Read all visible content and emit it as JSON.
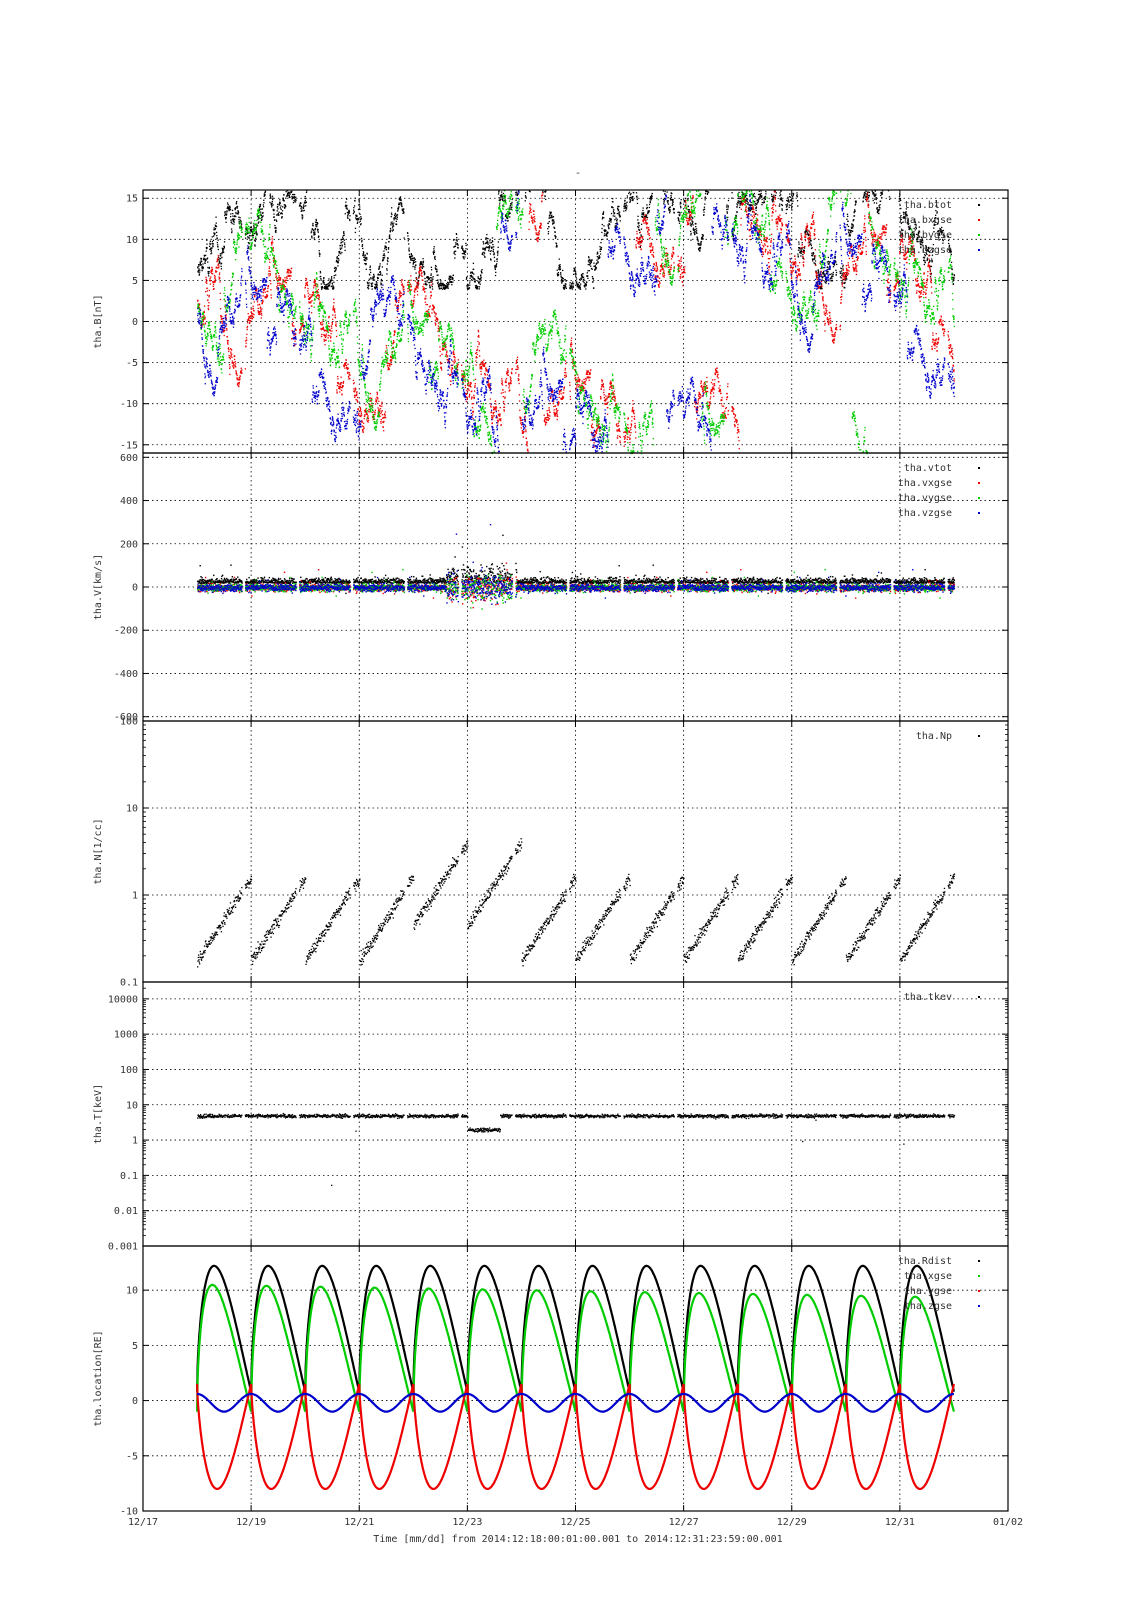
{
  "figure": {
    "title": "-",
    "x_axis_title": "Time [mm/dd]  from 2014:12:18:00:01:00.001  to  2014:12:31:23:59:00.001"
  },
  "chart_data": [
    {
      "type": "scatter",
      "panel": 1,
      "ylabel": "tha.B[nT]",
      "ylim": [
        -16,
        16
      ],
      "y_scale": "linear",
      "yticks": [
        -15,
        -10,
        -5,
        0,
        5,
        10,
        15
      ],
      "ytick_labels": [
        "-15",
        "-10",
        "-5",
        "0",
        "5",
        "10",
        "15"
      ],
      "xlim": [
        "12/17",
        "01/02"
      ],
      "grid": true,
      "legend_position": "top-right",
      "series": [
        {
          "name": "tha.btot",
          "color": "#000000"
        },
        {
          "name": "tha.bxgse",
          "color": "#ee0000"
        },
        {
          "name": "tha.bygse",
          "color": "#00cc00"
        },
        {
          "name": "tha.bzgse",
          "color": "#0000cc"
        }
      ],
      "data_note_x_range": [
        "12/18 00:01",
        "12/31 23:59"
      ]
    },
    {
      "type": "scatter",
      "panel": 2,
      "ylabel": "tha.V[km/s]",
      "ylim": [
        -620,
        620
      ],
      "y_scale": "linear",
      "yticks": [
        -600,
        -400,
        -200,
        0,
        200,
        400,
        600
      ],
      "ytick_labels": [
        "-600",
        "-400",
        "-200",
        "0",
        "200",
        "400",
        "600"
      ],
      "grid": true,
      "legend_position": "top-right",
      "series": [
        {
          "name": "tha.vtot",
          "color": "#000000"
        },
        {
          "name": "tha.vxgse",
          "color": "#ee0000"
        },
        {
          "name": "tha.vygse",
          "color": "#00cc00"
        },
        {
          "name": "tha.vzgse",
          "color": "#0000cc"
        }
      ]
    },
    {
      "type": "scatter",
      "panel": 3,
      "ylabel": "tha.N[1/cc]",
      "ylim": [
        0.1,
        100
      ],
      "y_scale": "log",
      "yticks": [
        0.1,
        1,
        10,
        100
      ],
      "ytick_labels": [
        "0.1",
        "1",
        "10",
        "100"
      ],
      "grid": true,
      "legend_position": "top-right",
      "series": [
        {
          "name": "tha.Np",
          "color": "#000000"
        }
      ]
    },
    {
      "type": "scatter",
      "panel": 4,
      "ylabel": "tha.T[keV]",
      "ylim": [
        0.001,
        30000
      ],
      "y_scale": "log",
      "yticks": [
        0.001,
        0.01,
        0.1,
        1,
        10,
        100,
        1000,
        10000
      ],
      "ytick_labels": [
        "0.001",
        "0.01",
        "0.1",
        "1",
        "10",
        "100",
        "1000",
        "10000"
      ],
      "grid": true,
      "legend_position": "top-right",
      "series": [
        {
          "name": "tha.tkev",
          "color": "#000000",
          "typical_value": 5
        }
      ]
    },
    {
      "type": "line",
      "panel": 5,
      "ylabel": "tha.location[RE]",
      "ylim": [
        -10,
        14
      ],
      "y_scale": "linear",
      "yticks": [
        -10,
        -5,
        0,
        5,
        10
      ],
      "ytick_labels": [
        "-10",
        "-5",
        "0",
        "5",
        "10"
      ],
      "grid": true,
      "legend_position": "top-right",
      "series": [
        {
          "name": "tha.Rdist",
          "color": "#000000",
          "orbit_min": 0.8,
          "orbit_max": 12.2
        },
        {
          "name": "tha.xgse",
          "color": "#00cc00",
          "orbit_min": -1.0,
          "orbit_max": 10.5
        },
        {
          "name": "tha.ygse",
          "color": "#ee0000",
          "orbit_min": -8.0,
          "orbit_max": 1.5
        },
        {
          "name": "tha.zgse",
          "color": "#0000cc",
          "orbit_min": -1.0,
          "orbit_max": 0.6
        }
      ],
      "orbit_period_days": 1.0
    }
  ],
  "x_axis": {
    "tick_labels": [
      "12/17",
      "12/19",
      "12/21",
      "12/23",
      "12/25",
      "12/27",
      "12/29",
      "12/31",
      "01/02"
    ],
    "tick_days": [
      0,
      2,
      4,
      6,
      8,
      10,
      12,
      14,
      16
    ],
    "range_days": [
      0,
      16
    ],
    "day_zero": "12/17",
    "data_start_day": 1.0,
    "data_end_day": 15.0
  }
}
